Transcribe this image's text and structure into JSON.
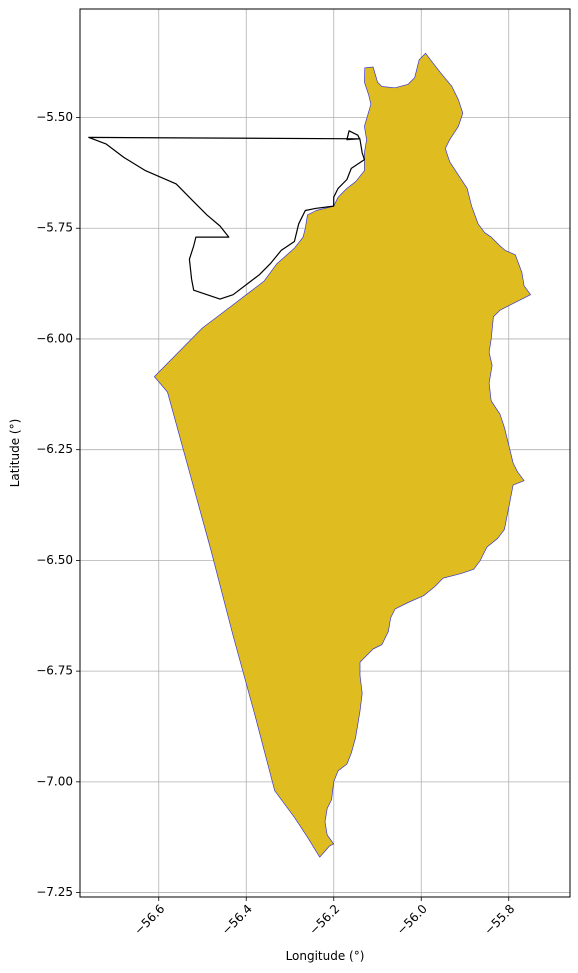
{
  "chart_data": {
    "type": "map",
    "xlabel": "Longitude (°)",
    "ylabel": "Latitude (°)",
    "xlim": [
      -56.78,
      -55.66
    ],
    "ylim": [
      -7.26,
      -5.255
    ],
    "grid": true,
    "x_ticks": [
      {
        "value": -56.6,
        "label": "−56.6"
      },
      {
        "value": -56.4,
        "label": "−56.4"
      },
      {
        "value": -56.2,
        "label": "−56.2"
      },
      {
        "value": -56.0,
        "label": "−56.0"
      },
      {
        "value": -55.8,
        "label": "−55.8"
      }
    ],
    "y_ticks": [
      {
        "value": -5.5,
        "label": "−5.50"
      },
      {
        "value": -5.75,
        "label": "−5.75"
      },
      {
        "value": -6.0,
        "label": "−6.00"
      },
      {
        "value": -6.25,
        "label": "−6.25"
      },
      {
        "value": -6.5,
        "label": "−6.50"
      },
      {
        "value": -6.75,
        "label": "−6.75"
      },
      {
        "value": -7.0,
        "label": "−7.00"
      },
      {
        "value": -7.25,
        "label": "−7.25"
      }
    ],
    "colors": {
      "region_fill": "#DFBC1F",
      "region_edge": "#3A3AD0",
      "outline": "#000000",
      "grid": "#B0B0B0"
    },
    "layers": [
      {
        "kind": "filled_polygon",
        "coords": [
          [
            -56.129,
            -5.388
          ],
          [
            -56.11,
            -5.386
          ],
          [
            -56.1,
            -5.42
          ],
          [
            -56.09,
            -5.43
          ],
          [
            -56.06,
            -5.433
          ],
          [
            -56.03,
            -5.425
          ],
          [
            -56.015,
            -5.41
          ],
          [
            -56.005,
            -5.37
          ],
          [
            -55.99,
            -5.355
          ],
          [
            -55.975,
            -5.375
          ],
          [
            -55.955,
            -5.4
          ],
          [
            -55.93,
            -5.43
          ],
          [
            -55.915,
            -5.46
          ],
          [
            -55.905,
            -5.49
          ],
          [
            -55.915,
            -5.52
          ],
          [
            -55.935,
            -5.55
          ],
          [
            -55.945,
            -5.57
          ],
          [
            -55.935,
            -5.6
          ],
          [
            -55.915,
            -5.63
          ],
          [
            -55.895,
            -5.66
          ],
          [
            -55.885,
            -5.7
          ],
          [
            -55.87,
            -5.74
          ],
          [
            -55.855,
            -5.76
          ],
          [
            -55.84,
            -5.77
          ],
          [
            -55.82,
            -5.79
          ],
          [
            -55.808,
            -5.8
          ],
          [
            -55.785,
            -5.81
          ],
          [
            -55.77,
            -5.85
          ],
          [
            -55.765,
            -5.88
          ],
          [
            -55.75,
            -5.9
          ],
          [
            -55.77,
            -5.91
          ],
          [
            -55.8,
            -5.925
          ],
          [
            -55.82,
            -5.935
          ],
          [
            -55.835,
            -5.95
          ],
          [
            -55.84,
            -6.0
          ],
          [
            -55.845,
            -6.03
          ],
          [
            -55.838,
            -6.06
          ],
          [
            -55.845,
            -6.1
          ],
          [
            -55.84,
            -6.14
          ],
          [
            -55.82,
            -6.17
          ],
          [
            -55.81,
            -6.2
          ],
          [
            -55.8,
            -6.24
          ],
          [
            -55.79,
            -6.28
          ],
          [
            -55.78,
            -6.3
          ],
          [
            -55.765,
            -6.32
          ],
          [
            -55.79,
            -6.33
          ],
          [
            -55.8,
            -6.38
          ],
          [
            -55.81,
            -6.43
          ],
          [
            -55.825,
            -6.45
          ],
          [
            -55.85,
            -6.47
          ],
          [
            -55.865,
            -6.5
          ],
          [
            -55.88,
            -6.52
          ],
          [
            -55.91,
            -6.53
          ],
          [
            -55.95,
            -6.54
          ],
          [
            -55.97,
            -6.56
          ],
          [
            -55.995,
            -6.58
          ],
          [
            -56.03,
            -6.595
          ],
          [
            -56.06,
            -6.61
          ],
          [
            -56.07,
            -6.63
          ],
          [
            -56.075,
            -6.66
          ],
          [
            -56.09,
            -6.69
          ],
          [
            -56.11,
            -6.7
          ],
          [
            -56.13,
            -6.72
          ],
          [
            -56.14,
            -6.73
          ],
          [
            -56.14,
            -6.76
          ],
          [
            -56.135,
            -6.8
          ],
          [
            -56.14,
            -6.84
          ],
          [
            -56.145,
            -6.87
          ],
          [
            -56.15,
            -6.9
          ],
          [
            -56.16,
            -6.935
          ],
          [
            -56.17,
            -6.96
          ],
          [
            -56.19,
            -6.975
          ],
          [
            -56.2,
            -7.0
          ],
          [
            -56.205,
            -7.04
          ],
          [
            -56.215,
            -7.06
          ],
          [
            -56.22,
            -7.09
          ],
          [
            -56.215,
            -7.12
          ],
          [
            -56.2,
            -7.14
          ],
          [
            -56.21,
            -7.145
          ],
          [
            -56.232,
            -7.17
          ],
          [
            -56.26,
            -7.125
          ],
          [
            -56.29,
            -7.08
          ],
          [
            -56.335,
            -7.02
          ],
          [
            -56.38,
            -6.85
          ],
          [
            -56.43,
            -6.67
          ],
          [
            -56.48,
            -6.48
          ],
          [
            -56.53,
            -6.3
          ],
          [
            -56.58,
            -6.12
          ],
          [
            -56.61,
            -6.085
          ],
          [
            -56.56,
            -6.035
          ],
          [
            -56.5,
            -5.975
          ],
          [
            -56.44,
            -5.93
          ],
          [
            -56.4,
            -5.9
          ],
          [
            -56.36,
            -5.87
          ],
          [
            -56.33,
            -5.83
          ],
          [
            -56.29,
            -5.795
          ],
          [
            -56.27,
            -5.77
          ],
          [
            -56.265,
            -5.75
          ],
          [
            -56.26,
            -5.72
          ],
          [
            -56.24,
            -5.71
          ],
          [
            -56.2,
            -5.7
          ],
          [
            -56.19,
            -5.68
          ],
          [
            -56.17,
            -5.66
          ],
          [
            -56.15,
            -5.645
          ],
          [
            -56.13,
            -5.62
          ],
          [
            -56.13,
            -5.58
          ],
          [
            -56.125,
            -5.55
          ],
          [
            -56.13,
            -5.52
          ],
          [
            -56.115,
            -5.47
          ],
          [
            -56.12,
            -5.45
          ],
          [
            -56.13,
            -5.42
          ]
        ]
      },
      {
        "kind": "outline",
        "coords": [
          [
            -56.76,
            -5.545
          ],
          [
            -56.14,
            -5.548
          ],
          [
            -56.17,
            -5.55
          ],
          [
            -56.165,
            -5.53
          ],
          [
            -56.145,
            -5.54
          ],
          [
            -56.14,
            -5.55
          ],
          [
            -56.135,
            -5.58
          ],
          [
            -56.13,
            -5.595
          ],
          [
            -56.16,
            -5.615
          ],
          [
            -56.17,
            -5.64
          ],
          [
            -56.19,
            -5.66
          ],
          [
            -56.2,
            -5.68
          ],
          [
            -56.2,
            -5.7
          ],
          [
            -56.24,
            -5.705
          ],
          [
            -56.265,
            -5.71
          ],
          [
            -56.28,
            -5.74
          ],
          [
            -56.29,
            -5.78
          ],
          [
            -56.32,
            -5.8
          ],
          [
            -56.345,
            -5.83
          ],
          [
            -56.37,
            -5.855
          ],
          [
            -56.39,
            -5.87
          ],
          [
            -56.43,
            -5.9
          ],
          [
            -56.46,
            -5.91
          ],
          [
            -56.52,
            -5.89
          ],
          [
            -56.525,
            -5.865
          ],
          [
            -56.53,
            -5.82
          ],
          [
            -56.52,
            -5.79
          ],
          [
            -56.515,
            -5.77
          ],
          [
            -56.44,
            -5.77
          ],
          [
            -56.46,
            -5.745
          ],
          [
            -56.49,
            -5.72
          ],
          [
            -56.52,
            -5.69
          ],
          [
            -56.56,
            -5.65
          ],
          [
            -56.63,
            -5.62
          ],
          [
            -56.68,
            -5.59
          ],
          [
            -56.72,
            -5.56
          ],
          [
            -56.76,
            -5.545
          ]
        ]
      }
    ]
  }
}
